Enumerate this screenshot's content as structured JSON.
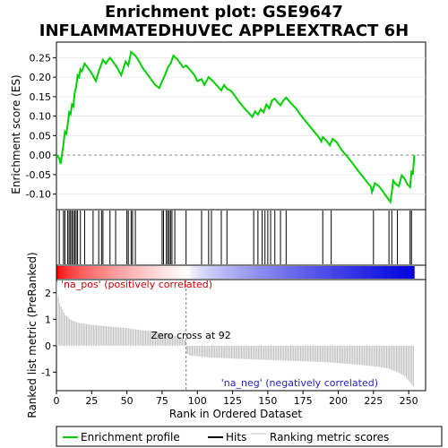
{
  "chart_data": {
    "type": "line",
    "title_line1": "Enrichment plot: GSE9647",
    "title_line2": "INFLAMMATEDHUVEC APPLEEXTRACT 6H",
    "xlabel": "Rank in Ordered Dataset",
    "ylabel_top": "Enrichment score (ES)",
    "ylabel_bottom": "Ranked list metric (PreRanked)",
    "xlim": [
      0,
      262
    ],
    "ylim_top": [
      -0.14,
      0.29
    ],
    "ylim_bottom": [
      -1.7,
      2.5
    ],
    "x_ticks": [
      0,
      25,
      50,
      75,
      100,
      125,
      150,
      175,
      200,
      225,
      250
    ],
    "y_ticks_top": [
      -0.1,
      -0.05,
      0.0,
      0.05,
      0.1,
      0.15,
      0.2,
      0.25
    ],
    "y_ticks_bottom": [
      -1,
      0,
      1,
      2
    ],
    "es_profile": [
      [
        0,
        0.0
      ],
      [
        2,
        -0.008
      ],
      [
        3,
        -0.022
      ],
      [
        5,
        0.03
      ],
      [
        6,
        0.06
      ],
      [
        7,
        0.055
      ],
      [
        8,
        0.08
      ],
      [
        9,
        0.11
      ],
      [
        10,
        0.105
      ],
      [
        11,
        0.13
      ],
      [
        12,
        0.125
      ],
      [
        13,
        0.16
      ],
      [
        14,
        0.175
      ],
      [
        15,
        0.205
      ],
      [
        16,
        0.2
      ],
      [
        17,
        0.22
      ],
      [
        18,
        0.215
      ],
      [
        20,
        0.235
      ],
      [
        22,
        0.225
      ],
      [
        25,
        0.21
      ],
      [
        28,
        0.19
      ],
      [
        30,
        0.215
      ],
      [
        33,
        0.245
      ],
      [
        35,
        0.235
      ],
      [
        38,
        0.25
      ],
      [
        40,
        0.24
      ],
      [
        43,
        0.225
      ],
      [
        46,
        0.205
      ],
      [
        49,
        0.24
      ],
      [
        51,
        0.23
      ],
      [
        53,
        0.265
      ],
      [
        56,
        0.255
      ],
      [
        58,
        0.245
      ],
      [
        61,
        0.225
      ],
      [
        64,
        0.21
      ],
      [
        67,
        0.195
      ],
      [
        70,
        0.18
      ],
      [
        73,
        0.172
      ],
      [
        75,
        0.19
      ],
      [
        77,
        0.205
      ],
      [
        79,
        0.225
      ],
      [
        81,
        0.235
      ],
      [
        83,
        0.255
      ],
      [
        86,
        0.245
      ],
      [
        90,
        0.225
      ],
      [
        92,
        0.23
      ],
      [
        95,
        0.218
      ],
      [
        98,
        0.205
      ],
      [
        100,
        0.19
      ],
      [
        103,
        0.195
      ],
      [
        105,
        0.18
      ],
      [
        108,
        0.2
      ],
      [
        111,
        0.19
      ],
      [
        114,
        0.178
      ],
      [
        117,
        0.166
      ],
      [
        119,
        0.18
      ],
      [
        121,
        0.17
      ],
      [
        124,
        0.165
      ],
      [
        127,
        0.15
      ],
      [
        130,
        0.135
      ],
      [
        133,
        0.122
      ],
      [
        136,
        0.11
      ],
      [
        139,
        0.098
      ],
      [
        141,
        0.112
      ],
      [
        143,
        0.104
      ],
      [
        145,
        0.118
      ],
      [
        147,
        0.11
      ],
      [
        149,
        0.13
      ],
      [
        151,
        0.12
      ],
      [
        153,
        0.14
      ],
      [
        155,
        0.145
      ],
      [
        157,
        0.135
      ],
      [
        159,
        0.128
      ],
      [
        161,
        0.14
      ],
      [
        163,
        0.148
      ],
      [
        166,
        0.135
      ],
      [
        170,
        0.12
      ],
      [
        174,
        0.1
      ],
      [
        178,
        0.082
      ],
      [
        182,
        0.064
      ],
      [
        186,
        0.047
      ],
      [
        188,
        0.035
      ],
      [
        189,
        0.046
      ],
      [
        192,
        0.036
      ],
      [
        194,
        0.025
      ],
      [
        196,
        0.042
      ],
      [
        199,
        0.033
      ],
      [
        202,
        0.015
      ],
      [
        206,
        -0.002
      ],
      [
        210,
        -0.02
      ],
      [
        214,
        -0.04
      ],
      [
        218,
        -0.058
      ],
      [
        221,
        -0.072
      ],
      [
        223,
        -0.08
      ],
      [
        224,
        -0.095
      ],
      [
        226,
        -0.072
      ],
      [
        229,
        -0.08
      ],
      [
        232,
        -0.095
      ],
      [
        235,
        -0.11
      ],
      [
        237,
        -0.12
      ],
      [
        238,
        -0.095
      ],
      [
        239,
        -0.065
      ],
      [
        241,
        -0.075
      ],
      [
        243,
        -0.08
      ],
      [
        245,
        -0.052
      ],
      [
        247,
        -0.06
      ],
      [
        249,
        -0.075
      ],
      [
        251,
        -0.082
      ],
      [
        252,
        -0.04
      ],
      [
        253,
        -0.05
      ],
      [
        254,
        0.0
      ]
    ],
    "hits": [
      2,
      5,
      6,
      8,
      9,
      10,
      11,
      12,
      13,
      14,
      15,
      17,
      20,
      26,
      30,
      32,
      33,
      38,
      42,
      50,
      51,
      53,
      54,
      56,
      75,
      76,
      78,
      79,
      80,
      81,
      82,
      84,
      92,
      103,
      108,
      110,
      117,
      121,
      140,
      143,
      146,
      148,
      150,
      152,
      155,
      159,
      163,
      189,
      195,
      225,
      236,
      238,
      242,
      251,
      252
    ],
    "metric_profile": [
      [
        0,
        2.4
      ],
      [
        1,
        1.85
      ],
      [
        2,
        1.6
      ],
      [
        4,
        1.35
      ],
      [
        6,
        1.15
      ],
      [
        10,
        0.98
      ],
      [
        14,
        0.88
      ],
      [
        20,
        0.82
      ],
      [
        30,
        0.76
      ],
      [
        40,
        0.71
      ],
      [
        50,
        0.66
      ],
      [
        60,
        0.59
      ],
      [
        70,
        0.52
      ],
      [
        80,
        0.43
      ],
      [
        88,
        0.32
      ],
      [
        91,
        0.22
      ],
      [
        92,
        -0.3
      ],
      [
        95,
        -0.38
      ],
      [
        110,
        -0.45
      ],
      [
        130,
        -0.5
      ],
      [
        150,
        -0.54
      ],
      [
        170,
        -0.58
      ],
      [
        190,
        -0.62
      ],
      [
        210,
        -0.7
      ],
      [
        225,
        -0.78
      ],
      [
        235,
        -0.86
      ],
      [
        242,
        -1.0
      ],
      [
        247,
        -1.15
      ],
      [
        250,
        -1.35
      ],
      [
        253,
        -1.55
      ]
    ],
    "n_genes": 254,
    "zero_cross": 92,
    "labels": {
      "pos": "'na_pos' (positively correlated)",
      "neg": "'na_neg' (negatively correlated)",
      "zero_cross": "Zero cross at 92"
    },
    "legend": {
      "placement": "bottom",
      "items": [
        "Enrichment profile",
        "Hits",
        "Ranking metric scores"
      ]
    },
    "colors": {
      "es_line": "#00d000",
      "hit_line": "#000000",
      "metric_bar": "#c0c0c0",
      "pos_label": "#cc0000",
      "neg_label": "#2222cc",
      "zero_line": "#808080",
      "bar_pos_strong": "#ff0000",
      "bar_neutral": "#ffffff",
      "bar_neg_strong": "#0000dd"
    }
  }
}
